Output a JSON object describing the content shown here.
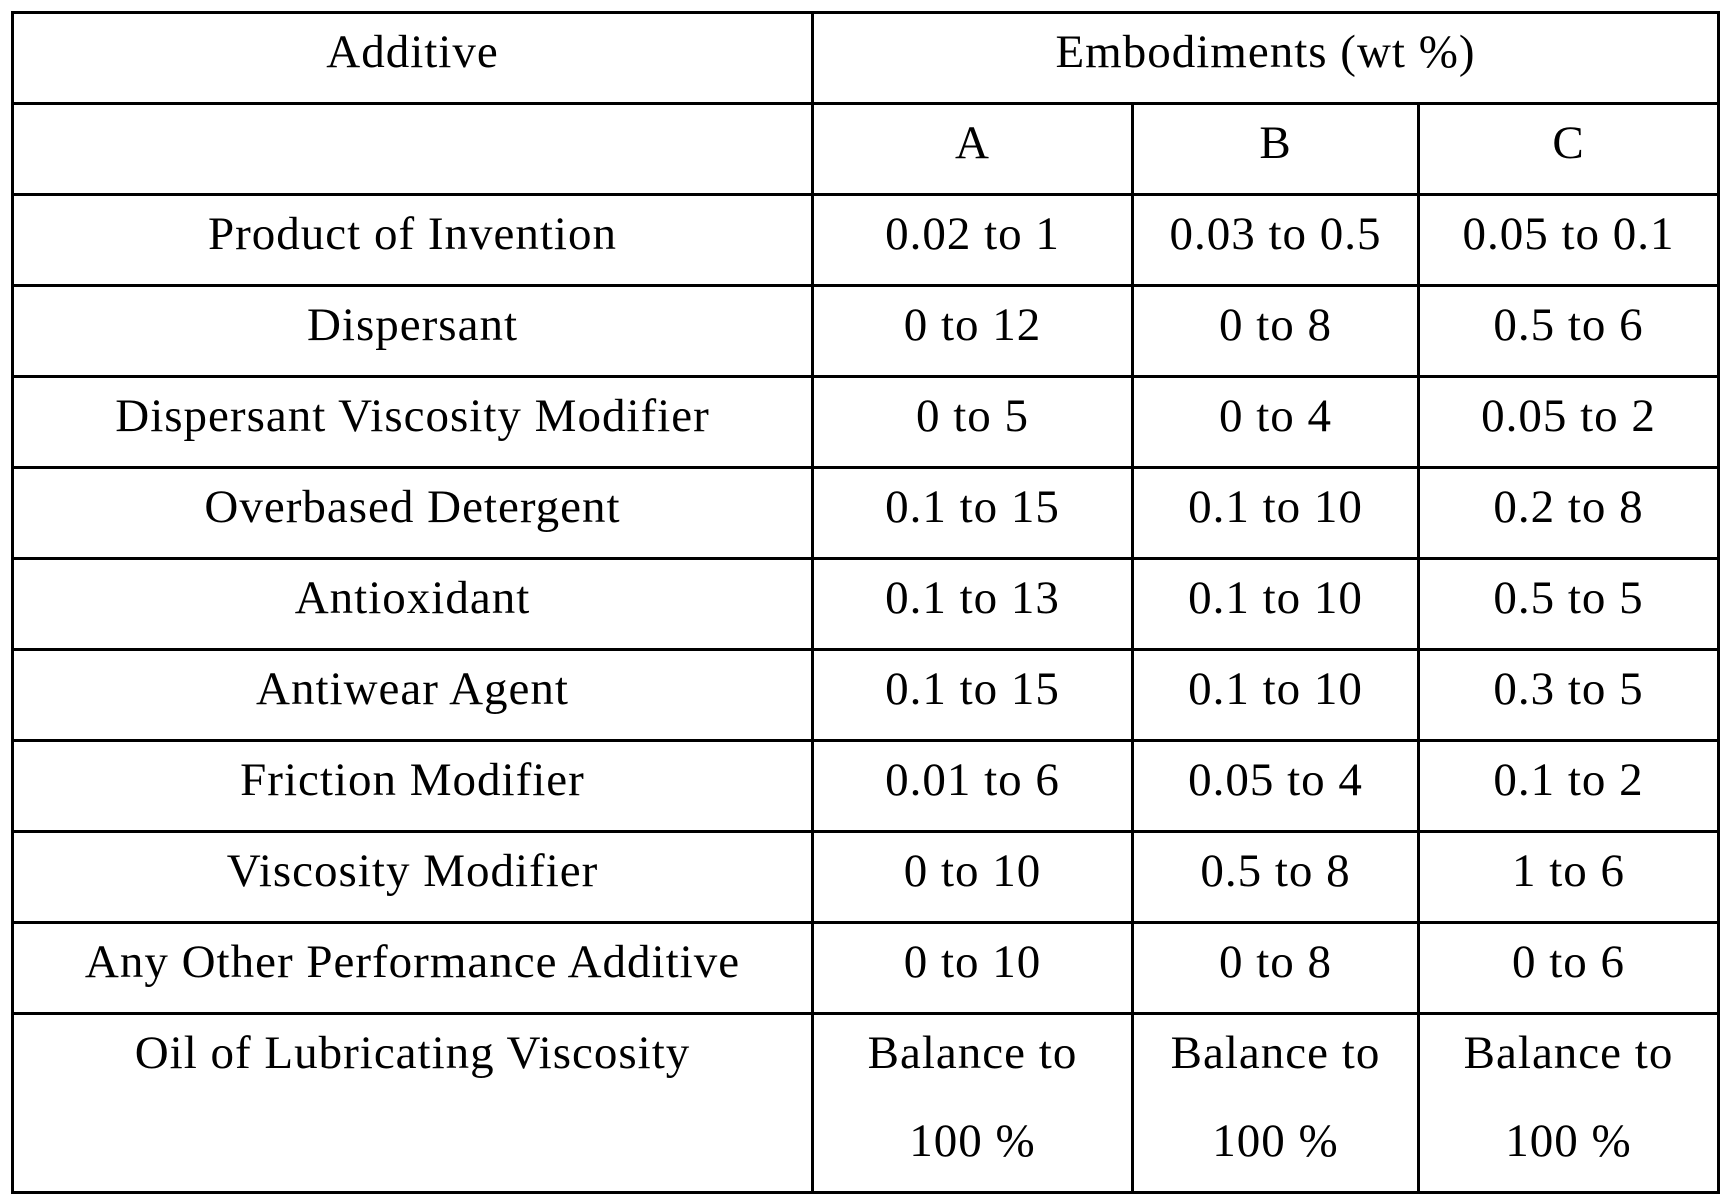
{
  "table": {
    "header_additive": "Additive",
    "header_embodiments": "Embodiments (wt %)",
    "embodiment_labels": [
      "A",
      "B",
      "C"
    ],
    "rows": [
      {
        "additive": "Product of Invention",
        "A": "0.02 to 1",
        "B": "0.03 to 0.5",
        "C": "0.05 to 0.1"
      },
      {
        "additive": "Dispersant",
        "A": "0 to 12",
        "B": "0 to 8",
        "C": "0.5 to 6"
      },
      {
        "additive": "Dispersant Viscosity Modifier",
        "A": "0 to 5",
        "B": "0 to 4",
        "C": "0.05 to 2"
      },
      {
        "additive": "Overbased Detergent",
        "A": "0.1 to 15",
        "B": "0.1 to 10",
        "C": "0.2 to 8"
      },
      {
        "additive": "Antioxidant",
        "A": "0.1 to 13",
        "B": "0.1 to 10",
        "C": "0.5 to 5"
      },
      {
        "additive": "Antiwear Agent",
        "A": "0.1 to 15",
        "B": "0.1 to 10",
        "C": "0.3 to 5"
      },
      {
        "additive": "Friction Modifier",
        "A": "0.01 to 6",
        "B": "0.05 to 4",
        "C": "0.1 to 2"
      },
      {
        "additive": "Viscosity Modifier",
        "A": "0 to 10",
        "B": "0.5 to 8",
        "C": "1 to 6"
      },
      {
        "additive": "Any Other Performance Additive",
        "A": "0 to 10",
        "B": "0 to 8",
        "C": "0 to 6"
      }
    ],
    "last_row": {
      "additive": "Oil of Lubricating Viscosity",
      "A_line1": "Balance to",
      "A_line2": "100 %",
      "B_line1": "Balance to",
      "B_line2": "100 %",
      "C_line1": "Balance to",
      "C_line2": "100 %"
    }
  }
}
